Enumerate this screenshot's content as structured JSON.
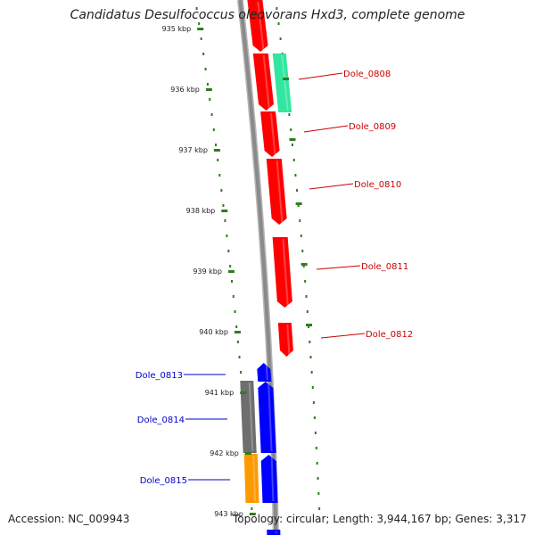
{
  "title": "Candidatus Desulfococcus oleovorans Hxd3, complete genome",
  "accession": "Accession: NC_009943",
  "topology": "Topology: circular; Length: 3,944,167 bp; Genes: 3,317",
  "colors": {
    "backbone": "#8a8a8a",
    "tick": "#2e7d1e",
    "forward_gene": "#ff0000",
    "reverse_gene": "#0000ff",
    "rna_gene": "#32e6a0",
    "pseudo_gene": "#6e6e6e",
    "other_gene": "#ff9900",
    "forward_label": "#cc0000",
    "reverse_label": "#0000cc"
  },
  "ticks": [
    {
      "label": "935 kbp"
    },
    {
      "label": "936 kbp"
    },
    {
      "label": "937 kbp"
    },
    {
      "label": "938 kbp"
    },
    {
      "label": "939 kbp"
    },
    {
      "label": "940 kbp"
    },
    {
      "label": "941 kbp"
    },
    {
      "label": "942 kbp"
    },
    {
      "label": "943 kbp"
    }
  ],
  "gene_labels": [
    {
      "text": "Dole_0808",
      "strand": "forward"
    },
    {
      "text": "Dole_0809",
      "strand": "forward"
    },
    {
      "text": "Dole_0810",
      "strand": "forward"
    },
    {
      "text": "Dole_0811",
      "strand": "forward"
    },
    {
      "text": "Dole_0812",
      "strand": "forward"
    },
    {
      "text": "Dole_0813",
      "strand": "reverse"
    },
    {
      "text": "Dole_0814",
      "strand": "reverse"
    },
    {
      "text": "Dole_0815",
      "strand": "reverse"
    }
  ]
}
